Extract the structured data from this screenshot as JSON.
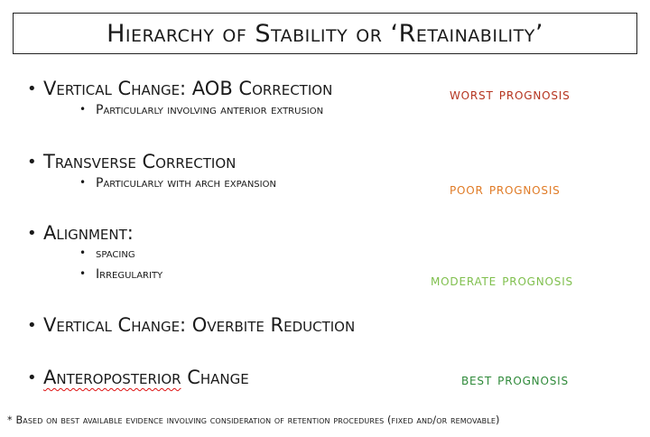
{
  "title": "Hierarchy of Stability or ‘Retainability’",
  "items": [
    {
      "label": "Vertical Change: AOB Correction",
      "subs": [
        "Particularly involving anterior extrusion"
      ]
    },
    {
      "label": "Transverse Correction",
      "subs": [
        "Particularly with arch expansion"
      ]
    },
    {
      "label": "Alignment:",
      "subs": [
        "spacing",
        "Irregularity"
      ]
    },
    {
      "label": "Vertical Change: Overbite Reduction",
      "subs": []
    },
    {
      "label_underlined": "Anteroposterior",
      "label_rest": " Change",
      "subs": []
    }
  ],
  "prognoses": [
    {
      "label": "worst prognosis",
      "color": "#b5341f"
    },
    {
      "label": "poor prognosis",
      "color": "#e07b26"
    },
    {
      "label": "moderate prognosis",
      "color": "#7fbf4d"
    },
    {
      "label": "best prognosis",
      "color": "#2f8a3a"
    }
  ],
  "bullet_char": "•",
  "footnote": "* Based on best available evidence involving consideration of retention procedures (fixed and/or removable)"
}
